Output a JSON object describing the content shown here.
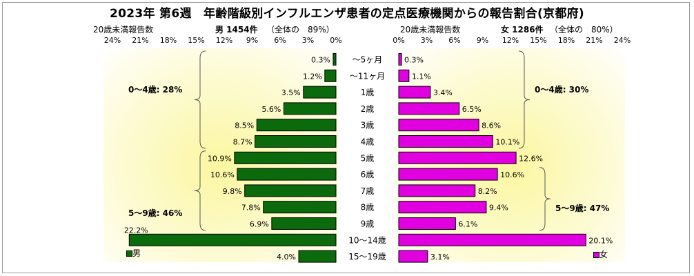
{
  "title": "2023年 第6週　年齢階級別インフルエンザ患者の定点医療機関からの報告割合(京都府)",
  "left_header": {
    "note": "20歳未満報告数",
    "count": "男 1454件",
    "share": "（全体の　89%）"
  },
  "right_header": {
    "note": "20歳未満報告数",
    "count": "女 1286件",
    "share": "（全体の　80%）"
  },
  "colors": {
    "male": "#0b6a0b",
    "female": "#e000e0",
    "background_glow": "#fbf7a0"
  },
  "brackets": [
    {
      "label": "0～4歳: 28%",
      "side": "left"
    },
    {
      "label": "5～9歳: 46%",
      "side": "left"
    },
    {
      "label": "0～4歳: 30%",
      "side": "right"
    },
    {
      "label": "5～9歳: 47%",
      "side": "right"
    }
  ],
  "chart_data": {
    "type": "bar",
    "orientation": "horizontal-population-pyramid",
    "title": "2023年 第6週　年齢階級別インフルエンザ患者の定点医療機関からの報告割合(京都府)",
    "categories": [
      "～5ヶ月",
      "～11ヶ月",
      "1歳",
      "2歳",
      "3歳",
      "4歳",
      "5歳",
      "6歳",
      "7歳",
      "8歳",
      "9歳",
      "10～14歳",
      "15～19歳"
    ],
    "x_ticks_left": [
      "24%",
      "21%",
      "18%",
      "15%",
      "12%",
      "9%",
      "6%",
      "3%",
      "0%"
    ],
    "x_ticks_right": [
      "0%",
      "3%",
      "6%",
      "9%",
      "12%",
      "15%",
      "18%",
      "21%",
      "24%"
    ],
    "xlim": [
      0,
      24
    ],
    "series": [
      {
        "name": "男",
        "side": "left",
        "values": [
          0.3,
          1.2,
          3.5,
          5.6,
          8.5,
          8.7,
          10.9,
          10.6,
          9.8,
          7.8,
          6.9,
          22.2,
          4.0
        ],
        "labels": [
          "0.3%",
          "1.2%",
          "3.5%",
          "5.6%",
          "8.5%",
          "8.7%",
          "10.9%",
          "10.6%",
          "9.8%",
          "7.8%",
          "6.9%",
          "22.2%",
          "4.0%"
        ]
      },
      {
        "name": "女",
        "side": "right",
        "values": [
          0.3,
          1.1,
          3.4,
          6.5,
          8.6,
          10.1,
          12.6,
          10.6,
          8.2,
          9.4,
          6.1,
          20.1,
          3.1
        ],
        "labels": [
          "0.3%",
          "1.1%",
          "3.4%",
          "6.5%",
          "8.6%",
          "10.1%",
          "12.6%",
          "10.6%",
          "8.2%",
          "9.4%",
          "6.1%",
          "20.1%",
          "3.1%"
        ]
      }
    ],
    "legend": {
      "left": "男",
      "right": "女",
      "placement": "bottom"
    },
    "grid": false
  }
}
